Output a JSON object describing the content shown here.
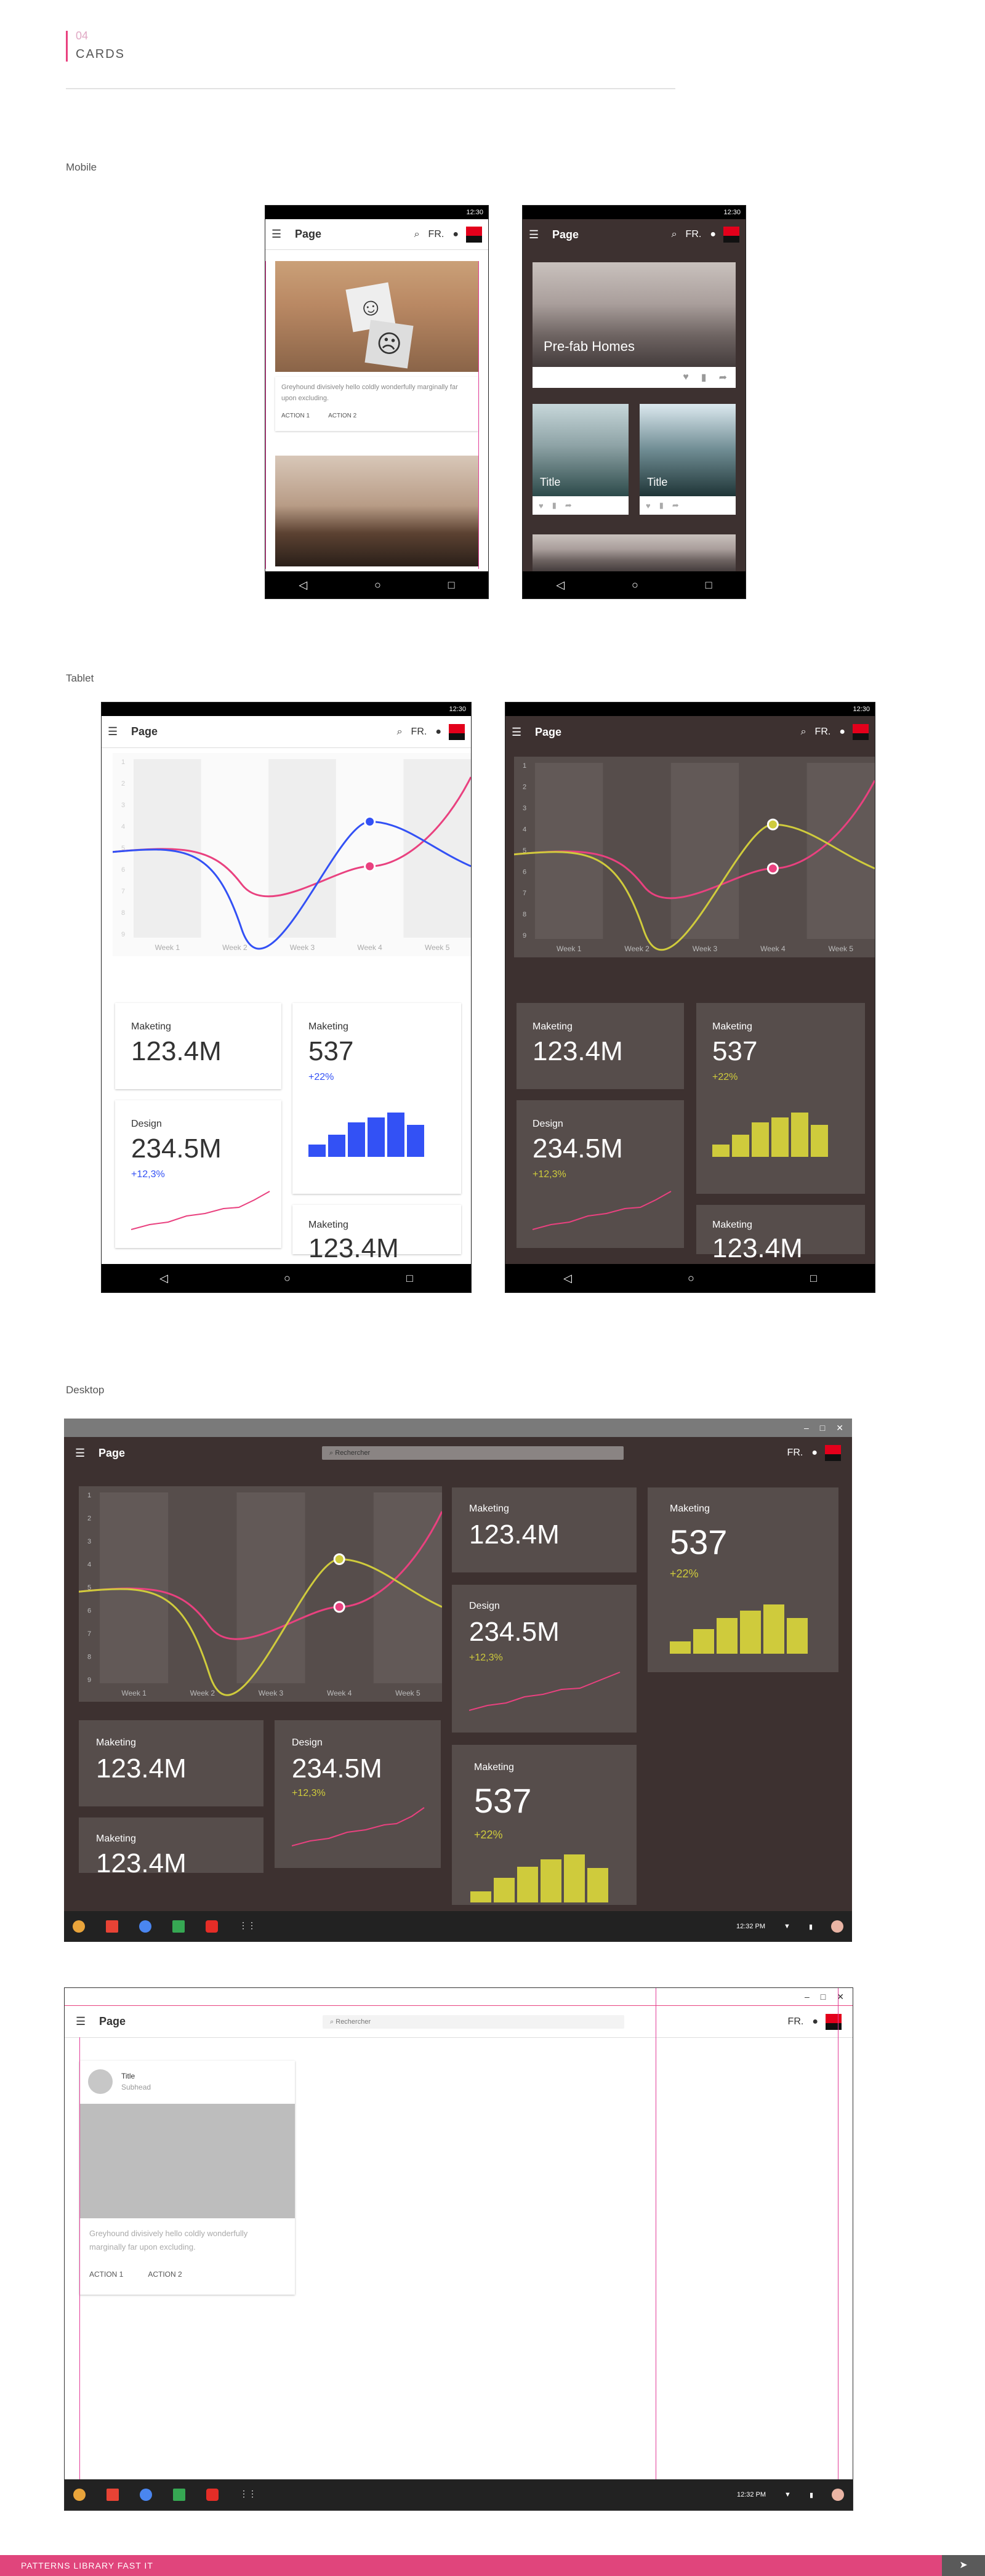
{
  "section": {
    "number": "04",
    "title": "CARDS"
  },
  "labels": {
    "mobile": "Mobile",
    "tablet": "Tablet",
    "desktop": "Desktop"
  },
  "status_time": "12:30",
  "appbar": {
    "title": "Page",
    "lang": "FR."
  },
  "mobile_light": {
    "card_text": "Greyhound divisively hello coldly wonderfully marginally far upon excluding.",
    "action1": "ACTION 1",
    "action2": "ACTION 2"
  },
  "mobile_dark": {
    "hero_title": "Pre-fab Homes",
    "tile1": "Title",
    "tile2": "Title"
  },
  "chart": {
    "y_ticks": [
      "1",
      "2",
      "3",
      "4",
      "5",
      "6",
      "7",
      "8",
      "9"
    ],
    "weeks": [
      "Week 1",
      "Week 2",
      "Week 3",
      "Week 4",
      "Week 5"
    ]
  },
  "kpis": {
    "marketing_label": "Maketing",
    "marketing_value": "123.4M",
    "marketing2_value": "537",
    "marketing2_delta": "+22%",
    "design_label": "Design",
    "design_value": "234.5M",
    "design_delta": "+12,3%"
  },
  "desktop": {
    "search_placeholder": "Rechercher",
    "clock": "12:32 PM"
  },
  "desktop_card": {
    "title": "Title",
    "subhead": "Subhead",
    "text": "Greyhound divisively hello coldly wonderfully marginally far upon excluding.",
    "action1": "ACTION 1",
    "action2": "ACTION 2"
  },
  "footer": "PATTERNS LIBRARY FAST IT",
  "colors": {
    "accent": "#e9417f",
    "blue": "#3351f5",
    "yellow": "#cfcb3c",
    "dark_bg": "#3d3130",
    "panel": "#564d4b"
  }
}
